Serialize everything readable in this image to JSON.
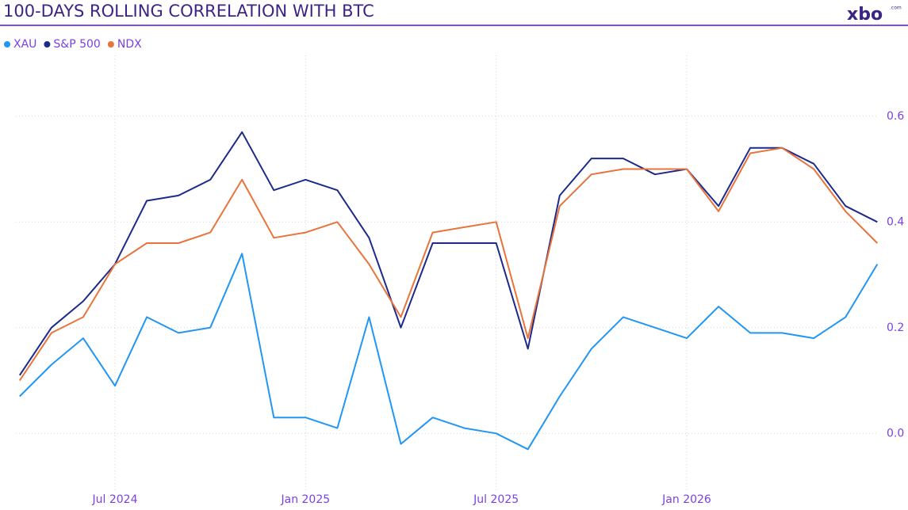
{
  "logo": {
    "text": "xbo",
    "suffix": ".com"
  },
  "chart_data": {
    "type": "line",
    "title": "100-DAYS ROLLING CORRELATION WITH BTC",
    "x": [
      "Apr 2024",
      "May 2024",
      "Jun 2024",
      "Jul 2024",
      "Aug 2024",
      "Sep 2024",
      "Oct 2024",
      "Nov 2024",
      "Dec 2024",
      "Jan 2025",
      "Feb 2025",
      "Mar 2025",
      "Apr 2025",
      "May 2025",
      "Jun 2025",
      "Jul 2025",
      "Aug 2025",
      "Sep 2025",
      "Oct 2025",
      "Nov 2025",
      "Dec 2025",
      "Jan 2026",
      "Feb 2026",
      "Mar 2026",
      "Apr 2026",
      "May 2026",
      "Jun 2026",
      "Jul 2026"
    ],
    "xticks": [
      "Jul 2024",
      "Jan 2025",
      "Jul 2025",
      "Jan 2026"
    ],
    "series": [
      {
        "name": "XAU",
        "color": "#2196f3",
        "values": [
          0.07,
          0.13,
          0.18,
          0.09,
          0.22,
          0.19,
          0.2,
          0.34,
          0.03,
          0.03,
          0.01,
          0.22,
          -0.02,
          0.03,
          0.01,
          0.0,
          -0.03,
          0.07,
          0.16,
          0.22,
          0.2,
          0.18,
          0.24,
          0.19,
          0.19,
          0.18,
          0.22,
          0.32
        ]
      },
      {
        "name": "S&P 500",
        "color": "#1c2a8c",
        "values": [
          0.11,
          0.2,
          0.25,
          0.32,
          0.44,
          0.45,
          0.48,
          0.57,
          0.46,
          0.48,
          0.46,
          0.37,
          0.2,
          0.36,
          0.36,
          0.36,
          0.16,
          0.45,
          0.52,
          0.52,
          0.49,
          0.5,
          0.43,
          0.54,
          0.54,
          0.51,
          0.43,
          0.4
        ]
      },
      {
        "name": "NDX",
        "color": "#e8743b",
        "values": [
          0.1,
          0.19,
          0.22,
          0.32,
          0.36,
          0.36,
          0.38,
          0.48,
          0.37,
          0.38,
          0.4,
          0.32,
          0.22,
          0.38,
          0.39,
          0.4,
          0.18,
          0.43,
          0.49,
          0.5,
          0.5,
          0.5,
          0.42,
          0.53,
          0.54,
          0.5,
          0.42,
          0.36
        ]
      }
    ],
    "ylim": [
      -0.1,
      0.7
    ],
    "yticks": [
      {
        "value": 0,
        "label": "0.0"
      },
      0.2,
      0.4,
      0.6
    ],
    "grid": true
  }
}
